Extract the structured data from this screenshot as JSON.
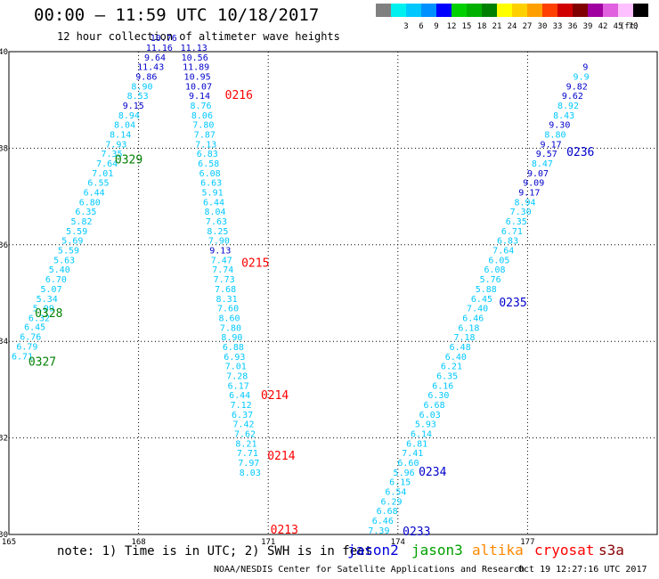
{
  "header": {
    "title": "00:00 – 11:59 UTC 10/18/2017",
    "subtitle": "12 hour collection of altimeter wave heights"
  },
  "legend": {
    "unit": "(ft)",
    "items": [
      {
        "color": "#808080",
        "label": ""
      },
      {
        "color": "#00f0f0",
        "label": "3"
      },
      {
        "color": "#00c8ff",
        "label": "6"
      },
      {
        "color": "#0090ff",
        "label": "9"
      },
      {
        "color": "#0000ff",
        "label": "12"
      },
      {
        "color": "#00d000",
        "label": "15"
      },
      {
        "color": "#00b000",
        "label": "18"
      },
      {
        "color": "#008000",
        "label": "21"
      },
      {
        "color": "#ffff00",
        "label": "24"
      },
      {
        "color": "#ffd000",
        "label": "27"
      },
      {
        "color": "#ffa000",
        "label": "30"
      },
      {
        "color": "#ff4000",
        "label": "33"
      },
      {
        "color": "#d00000",
        "label": "36"
      },
      {
        "color": "#800000",
        "label": "39"
      },
      {
        "color": "#a000a0",
        "label": "42"
      },
      {
        "color": "#e060e0",
        "label": "45"
      },
      {
        "color": "#ffc0ff",
        "label": "70"
      },
      {
        "color": "#000000",
        "label": ""
      }
    ]
  },
  "axes": {
    "lon_labels": [
      "165",
      "168",
      "171",
      "174",
      "177"
    ],
    "lat_labels": [
      "40",
      "38",
      "36",
      "34",
      "32",
      "30"
    ]
  },
  "colors": {
    "light": "#00c8ff",
    "dark": "#0000cc",
    "red": "#ff0000",
    "green": "#008000"
  },
  "tracks": [
    {
      "name": "track-0328",
      "points": [
        {
          "lon": 165.31,
          "lat": 33.63,
          "v": "6.71",
          "c": "light"
        },
        {
          "lon": 165.42,
          "lat": 33.83,
          "v": "6.79",
          "c": "light"
        },
        {
          "lon": 165.5,
          "lat": 34.03,
          "v": "6.76",
          "c": "light"
        },
        {
          "lon": 165.6,
          "lat": 34.23,
          "v": "6.45",
          "c": "light"
        },
        {
          "lon": 165.7,
          "lat": 34.42,
          "v": "6.32",
          "c": "light"
        },
        {
          "lon": 165.8,
          "lat": 34.62,
          "v": "5.09",
          "c": "light"
        },
        {
          "lon": 165.88,
          "lat": 34.82,
          "v": "5.34",
          "c": "light"
        },
        {
          "lon": 165.98,
          "lat": 35.02,
          "v": "5.07",
          "c": "light"
        },
        {
          "lon": 166.09,
          "lat": 35.22,
          "v": "6.70",
          "c": "light"
        },
        {
          "lon": 166.17,
          "lat": 35.42,
          "v": "5.40",
          "c": "light"
        },
        {
          "lon": 166.28,
          "lat": 35.62,
          "v": "5.63",
          "c": "light"
        },
        {
          "lon": 166.38,
          "lat": 35.82,
          "v": "5.59",
          "c": "light"
        },
        {
          "lon": 166.47,
          "lat": 36.02,
          "v": "5.69",
          "c": "light"
        },
        {
          "lon": 166.57,
          "lat": 36.22,
          "v": "5.59",
          "c": "light"
        },
        {
          "lon": 166.68,
          "lat": 36.42,
          "v": "5.82",
          "c": "light"
        },
        {
          "lon": 166.78,
          "lat": 36.62,
          "v": "6.35",
          "c": "light"
        },
        {
          "lon": 166.87,
          "lat": 36.82,
          "v": "6.80",
          "c": "light"
        },
        {
          "lon": 166.97,
          "lat": 37.02,
          "v": "6.44",
          "c": "light"
        },
        {
          "lon": 167.07,
          "lat": 37.22,
          "v": "6.55",
          "c": "light"
        },
        {
          "lon": 167.17,
          "lat": 37.42,
          "v": "7.01",
          "c": "light"
        },
        {
          "lon": 167.27,
          "lat": 37.62,
          "v": "7.64",
          "c": "light"
        },
        {
          "lon": 167.38,
          "lat": 37.82,
          "v": "7.35",
          "c": "light"
        },
        {
          "lon": 167.48,
          "lat": 38.02,
          "v": "7.93",
          "c": "light"
        },
        {
          "lon": 167.58,
          "lat": 38.22,
          "v": "8.14",
          "c": "light"
        },
        {
          "lon": 167.68,
          "lat": 38.42,
          "v": "8.04",
          "c": "light"
        },
        {
          "lon": 167.78,
          "lat": 38.62,
          "v": "8.94",
          "c": "light"
        },
        {
          "lon": 167.88,
          "lat": 38.82,
          "v": "9.15",
          "c": "dark"
        },
        {
          "lon": 167.98,
          "lat": 39.02,
          "v": "8.53",
          "c": "light"
        },
        {
          "lon": 168.08,
          "lat": 39.22,
          "v": "8.90",
          "c": "light"
        },
        {
          "lon": 168.18,
          "lat": 39.42,
          "v": "9.86",
          "c": "dark"
        },
        {
          "lon": 168.28,
          "lat": 39.62,
          "v": "11.43",
          "c": "dark"
        },
        {
          "lon": 168.38,
          "lat": 39.82,
          "v": "9.64",
          "c": "dark"
        },
        {
          "lon": 168.48,
          "lat": 40.02,
          "v": "11.16",
          "c": "dark"
        },
        {
          "lon": 168.58,
          "lat": 40.22,
          "v": "10.76",
          "c": "dark"
        }
      ]
    },
    {
      "name": "track-0215",
      "points": [
        {
          "lon": 169.28,
          "lat": 40.02,
          "v": "11.13",
          "c": "dark"
        },
        {
          "lon": 169.3,
          "lat": 39.82,
          "v": "10.56",
          "c": "dark"
        },
        {
          "lon": 169.33,
          "lat": 39.62,
          "v": "11.89",
          "c": "dark"
        },
        {
          "lon": 169.36,
          "lat": 39.42,
          "v": "10.95",
          "c": "dark"
        },
        {
          "lon": 169.39,
          "lat": 39.22,
          "v": "10.07",
          "c": "dark"
        },
        {
          "lon": 169.41,
          "lat": 39.02,
          "v": "9.14",
          "c": "dark"
        },
        {
          "lon": 169.44,
          "lat": 38.82,
          "v": "8.76",
          "c": "light"
        },
        {
          "lon": 169.47,
          "lat": 38.62,
          "v": "8.06",
          "c": "light"
        },
        {
          "lon": 169.5,
          "lat": 38.42,
          "v": "7.80",
          "c": "light"
        },
        {
          "lon": 169.53,
          "lat": 38.22,
          "v": "7.87",
          "c": "light"
        },
        {
          "lon": 169.56,
          "lat": 38.02,
          "v": "7.13",
          "c": "light"
        },
        {
          "lon": 169.59,
          "lat": 37.82,
          "v": "6.83",
          "c": "light"
        },
        {
          "lon": 169.62,
          "lat": 37.62,
          "v": "6.58",
          "c": "light"
        },
        {
          "lon": 169.65,
          "lat": 37.42,
          "v": "6.08",
          "c": "light"
        },
        {
          "lon": 169.68,
          "lat": 37.22,
          "v": "6.63",
          "c": "light"
        },
        {
          "lon": 169.71,
          "lat": 37.02,
          "v": "5.91",
          "c": "light"
        },
        {
          "lon": 169.74,
          "lat": 36.82,
          "v": "6.44",
          "c": "light"
        },
        {
          "lon": 169.77,
          "lat": 36.62,
          "v": "8.04",
          "c": "light"
        },
        {
          "lon": 169.8,
          "lat": 36.42,
          "v": "7.63",
          "c": "light"
        },
        {
          "lon": 169.83,
          "lat": 36.22,
          "v": "8.25",
          "c": "light"
        },
        {
          "lon": 169.86,
          "lat": 36.02,
          "v": "7.90",
          "c": "light"
        },
        {
          "lon": 169.89,
          "lat": 35.82,
          "v": "9.13",
          "c": "dark"
        },
        {
          "lon": 169.92,
          "lat": 35.62,
          "v": "7.47",
          "c": "light"
        },
        {
          "lon": 169.95,
          "lat": 35.42,
          "v": "7.74",
          "c": "light"
        },
        {
          "lon": 169.98,
          "lat": 35.22,
          "v": "7.73",
          "c": "light"
        },
        {
          "lon": 170.01,
          "lat": 35.02,
          "v": "7.68",
          "c": "light"
        },
        {
          "lon": 170.04,
          "lat": 34.82,
          "v": "8.31",
          "c": "light"
        },
        {
          "lon": 170.07,
          "lat": 34.62,
          "v": "7.60",
          "c": "light"
        },
        {
          "lon": 170.1,
          "lat": 34.42,
          "v": "8.60",
          "c": "light"
        },
        {
          "lon": 170.13,
          "lat": 34.22,
          "v": "7.80",
          "c": "light"
        },
        {
          "lon": 170.16,
          "lat": 34.02,
          "v": "8.90",
          "c": "light"
        },
        {
          "lon": 170.19,
          "lat": 33.82,
          "v": "6.88",
          "c": "light"
        },
        {
          "lon": 170.22,
          "lat": 33.62,
          "v": "6.93",
          "c": "light"
        },
        {
          "lon": 170.25,
          "lat": 33.42,
          "v": "7.01",
          "c": "light"
        },
        {
          "lon": 170.28,
          "lat": 33.22,
          "v": "7.28",
          "c": "light"
        },
        {
          "lon": 170.31,
          "lat": 33.02,
          "v": "6.17",
          "c": "light"
        },
        {
          "lon": 170.34,
          "lat": 32.82,
          "v": "6.44",
          "c": "light"
        },
        {
          "lon": 170.37,
          "lat": 32.62,
          "v": "7.12",
          "c": "light"
        },
        {
          "lon": 170.4,
          "lat": 32.42,
          "v": "6.37",
          "c": "light"
        },
        {
          "lon": 170.43,
          "lat": 32.22,
          "v": "7.42",
          "c": "light"
        },
        {
          "lon": 170.46,
          "lat": 32.02,
          "v": "7.62",
          "c": "light"
        },
        {
          "lon": 170.49,
          "lat": 31.82,
          "v": "8.21",
          "c": "light"
        },
        {
          "lon": 170.52,
          "lat": 31.62,
          "v": "7.71",
          "c": "light"
        },
        {
          "lon": 170.55,
          "lat": 31.42,
          "v": "7.97",
          "c": "light"
        },
        {
          "lon": 170.58,
          "lat": 31.22,
          "v": "8.03",
          "c": "light"
        }
      ]
    },
    {
      "name": "track-0235",
      "points": [
        {
          "lon": 173.56,
          "lat": 30.02,
          "v": "7.39",
          "c": "light"
        },
        {
          "lon": 173.65,
          "lat": 30.22,
          "v": "6.46",
          "c": "light"
        },
        {
          "lon": 173.75,
          "lat": 30.42,
          "v": "6.68",
          "c": "light"
        },
        {
          "lon": 173.85,
          "lat": 30.62,
          "v": "6.29",
          "c": "light"
        },
        {
          "lon": 173.95,
          "lat": 30.82,
          "v": "6.54",
          "c": "light"
        },
        {
          "lon": 174.05,
          "lat": 31.02,
          "v": "6.15",
          "c": "light"
        },
        {
          "lon": 174.14,
          "lat": 31.22,
          "v": "5.96",
          "c": "light"
        },
        {
          "lon": 174.24,
          "lat": 31.42,
          "v": "6.60",
          "c": "light"
        },
        {
          "lon": 174.34,
          "lat": 31.62,
          "v": "7.41",
          "c": "light"
        },
        {
          "lon": 174.44,
          "lat": 31.82,
          "v": "6.81",
          "c": "light"
        },
        {
          "lon": 174.54,
          "lat": 32.02,
          "v": "6.14",
          "c": "light"
        },
        {
          "lon": 174.64,
          "lat": 32.22,
          "v": "5.93",
          "c": "light"
        },
        {
          "lon": 174.74,
          "lat": 32.42,
          "v": "6.03",
          "c": "light"
        },
        {
          "lon": 174.84,
          "lat": 32.62,
          "v": "6.68",
          "c": "light"
        },
        {
          "lon": 174.94,
          "lat": 32.82,
          "v": "6.30",
          "c": "light"
        },
        {
          "lon": 175.04,
          "lat": 33.02,
          "v": "6.16",
          "c": "light"
        },
        {
          "lon": 175.14,
          "lat": 33.22,
          "v": "6.35",
          "c": "light"
        },
        {
          "lon": 175.24,
          "lat": 33.42,
          "v": "6.21",
          "c": "light"
        },
        {
          "lon": 175.34,
          "lat": 33.62,
          "v": "6.40",
          "c": "light"
        },
        {
          "lon": 175.44,
          "lat": 33.82,
          "v": "6.48",
          "c": "light"
        },
        {
          "lon": 175.54,
          "lat": 34.02,
          "v": "7.18",
          "c": "light"
        },
        {
          "lon": 175.64,
          "lat": 34.22,
          "v": "6.18",
          "c": "light"
        },
        {
          "lon": 175.74,
          "lat": 34.42,
          "v": "6.46",
          "c": "light"
        },
        {
          "lon": 175.84,
          "lat": 34.62,
          "v": "7.40",
          "c": "light"
        },
        {
          "lon": 175.94,
          "lat": 34.82,
          "v": "6.45",
          "c": "light"
        },
        {
          "lon": 176.04,
          "lat": 35.02,
          "v": "5.88",
          "c": "light"
        },
        {
          "lon": 176.14,
          "lat": 35.22,
          "v": "5.76",
          "c": "light"
        },
        {
          "lon": 176.24,
          "lat": 35.42,
          "v": "6.08",
          "c": "light"
        },
        {
          "lon": 176.34,
          "lat": 35.62,
          "v": "6.05",
          "c": "light"
        },
        {
          "lon": 176.44,
          "lat": 35.82,
          "v": "7.64",
          "c": "light"
        },
        {
          "lon": 176.54,
          "lat": 36.02,
          "v": "6.83",
          "c": "light"
        },
        {
          "lon": 176.64,
          "lat": 36.22,
          "v": "6.71",
          "c": "light"
        },
        {
          "lon": 176.74,
          "lat": 36.42,
          "v": "6.35",
          "c": "light"
        },
        {
          "lon": 176.84,
          "lat": 36.62,
          "v": "7.30",
          "c": "light"
        },
        {
          "lon": 176.94,
          "lat": 36.82,
          "v": "8.94",
          "c": "light"
        },
        {
          "lon": 177.04,
          "lat": 37.02,
          "v": "9.17",
          "c": "dark"
        },
        {
          "lon": 177.14,
          "lat": 37.22,
          "v": "9.09",
          "c": "dark"
        },
        {
          "lon": 177.24,
          "lat": 37.42,
          "v": "9.07",
          "c": "dark"
        },
        {
          "lon": 177.34,
          "lat": 37.62,
          "v": "8.47",
          "c": "light"
        },
        {
          "lon": 177.44,
          "lat": 37.82,
          "v": "9.57",
          "c": "dark"
        },
        {
          "lon": 177.54,
          "lat": 38.02,
          "v": "9.17",
          "c": "dark"
        },
        {
          "lon": 177.64,
          "lat": 38.22,
          "v": "8.80",
          "c": "light"
        },
        {
          "lon": 177.74,
          "lat": 38.42,
          "v": "9.30",
          "c": "dark"
        },
        {
          "lon": 177.84,
          "lat": 38.62,
          "v": "8.43",
          "c": "light"
        },
        {
          "lon": 177.94,
          "lat": 38.82,
          "v": "8.92",
          "c": "light"
        },
        {
          "lon": 178.04,
          "lat": 39.02,
          "v": "9.62",
          "c": "dark"
        },
        {
          "lon": 178.14,
          "lat": 39.22,
          "v": "9.82",
          "c": "dark"
        },
        {
          "lon": 178.24,
          "lat": 39.42,
          "v": "9.9",
          "c": "light"
        },
        {
          "lon": 178.34,
          "lat": 39.62,
          "v": "9",
          "c": "dark"
        }
      ]
    }
  ],
  "time_labels": [
    {
      "lon": 165.45,
      "lat": 33.5,
      "v": "0327",
      "c": "green"
    },
    {
      "lon": 165.6,
      "lat": 34.5,
      "v": "0328",
      "c": "green"
    },
    {
      "lon": 167.45,
      "lat": 37.68,
      "v": "0329",
      "c": "green"
    },
    {
      "lon": 170.0,
      "lat": 39.02,
      "v": "0216",
      "c": "red"
    },
    {
      "lon": 170.38,
      "lat": 35.54,
      "v": "0215",
      "c": "red"
    },
    {
      "lon": 170.83,
      "lat": 32.8,
      "v": "0214",
      "c": "red"
    },
    {
      "lon": 170.98,
      "lat": 31.55,
      "v": "0214",
      "c": "red"
    },
    {
      "lon": 171.05,
      "lat": 30.02,
      "v": "0213",
      "c": "red"
    },
    {
      "lon": 174.11,
      "lat": 29.98,
      "v": "0233",
      "c": "dark"
    },
    {
      "lon": 174.48,
      "lat": 31.22,
      "v": "0234",
      "c": "dark"
    },
    {
      "lon": 176.34,
      "lat": 34.72,
      "v": "0235",
      "c": "dark"
    },
    {
      "lon": 177.9,
      "lat": 37.84,
      "v": "0236",
      "c": "dark"
    }
  ],
  "footer": {
    "note": "note: 1) Time is in UTC; 2) SWH is in feet",
    "missions": [
      {
        "label": "jason2",
        "color": "#0000dd"
      },
      {
        "label": "jason3",
        "color": "#00a000"
      },
      {
        "label": "altika",
        "color": "#ff8800"
      },
      {
        "label": "cryosat",
        "color": "#ff0000"
      },
      {
        "label": "s3a",
        "color": "#880000"
      }
    ],
    "credit": "NOAA/NESDIS Center for Satellite Applications and Research",
    "timestamp": "Oct 19 12:27:16 UTC 2017"
  }
}
